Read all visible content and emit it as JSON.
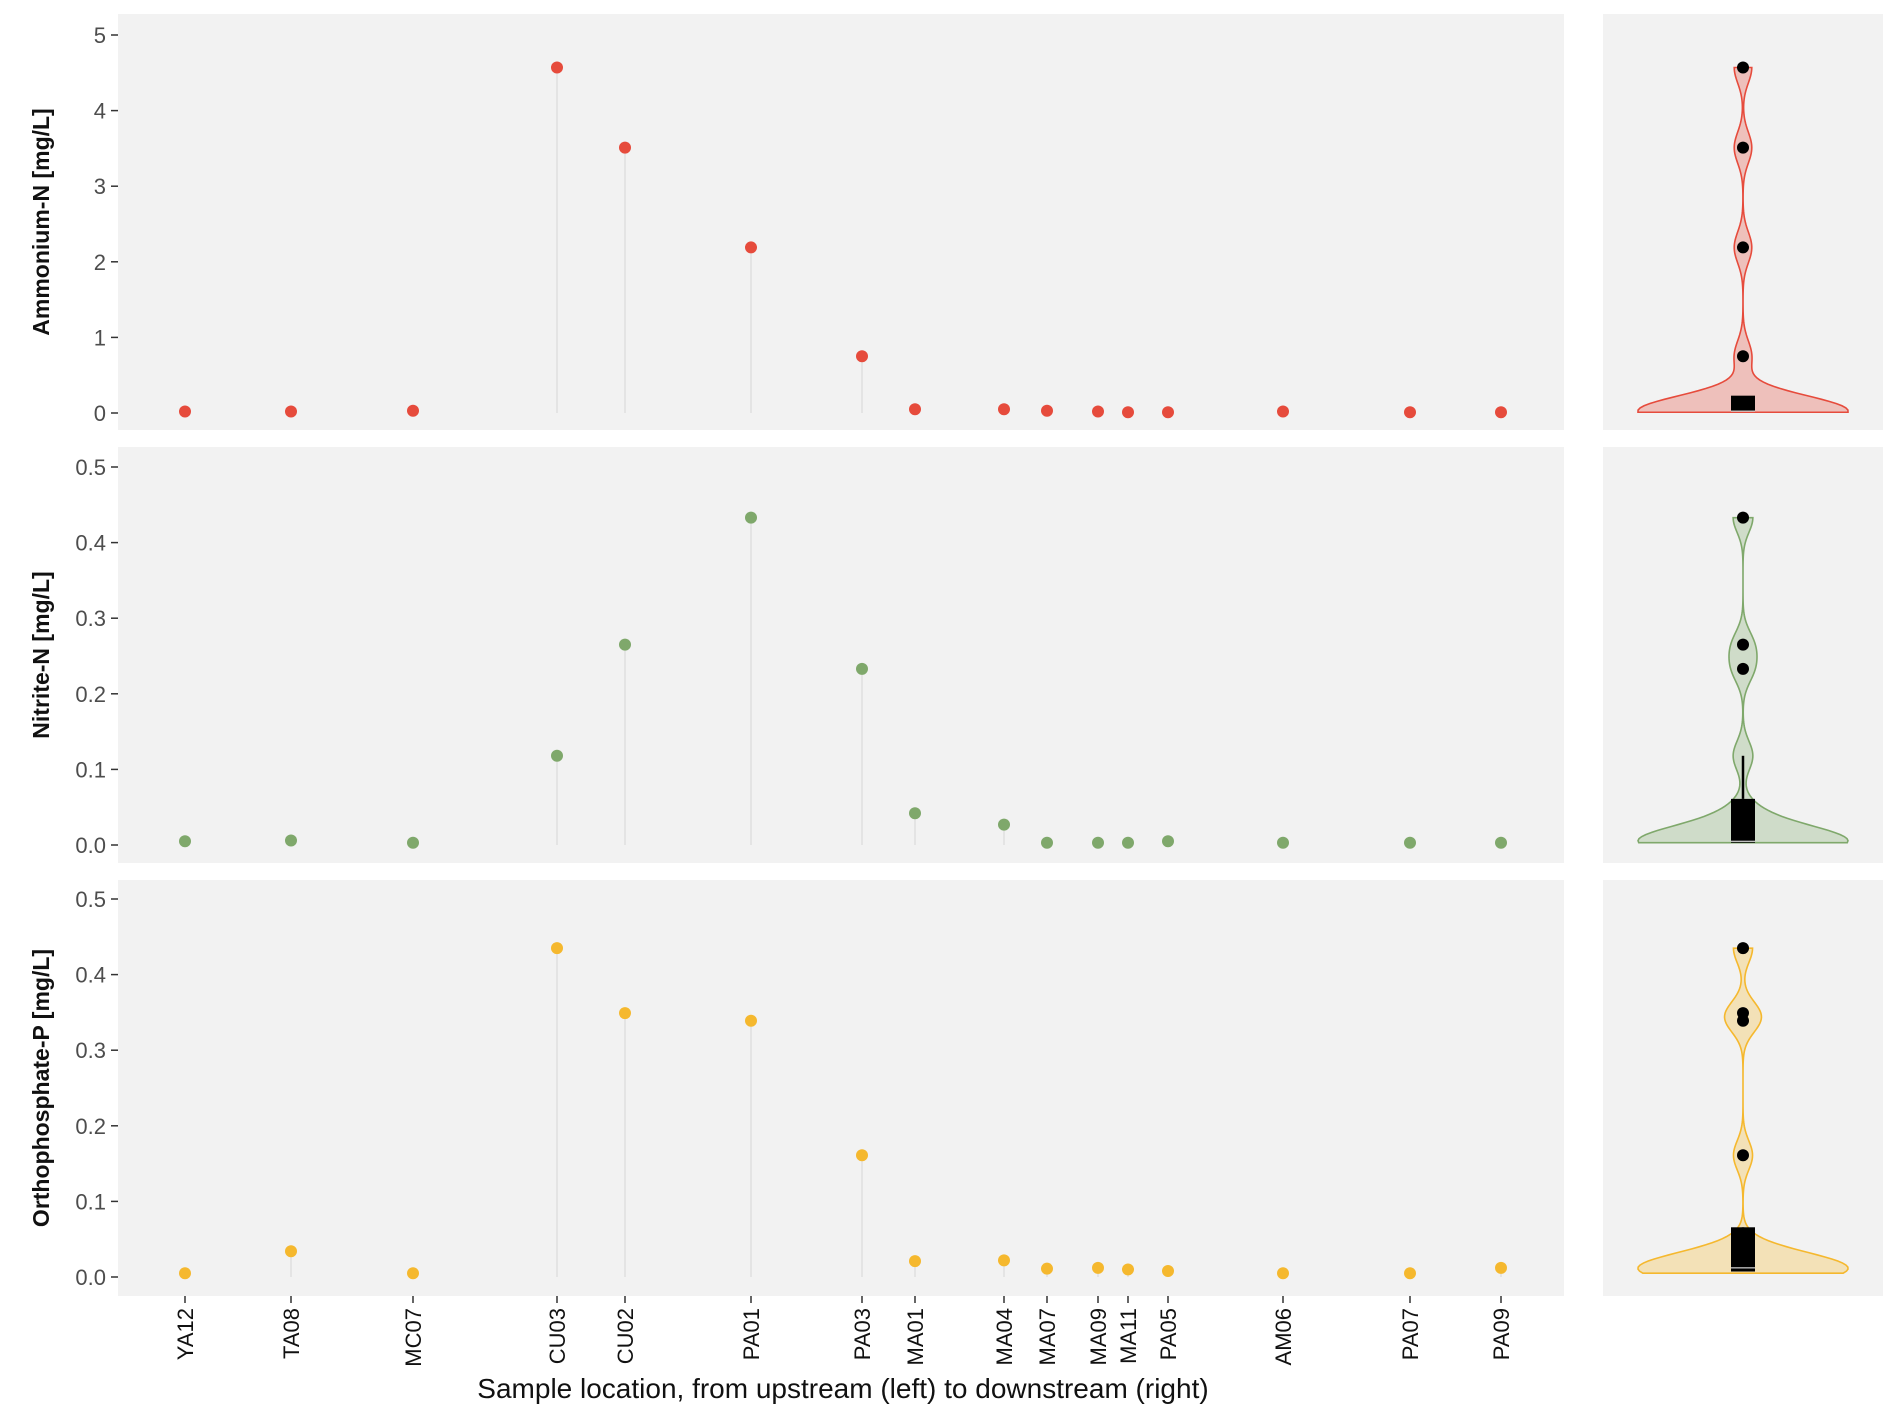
{
  "colors": {
    "panel_bg": "#f2f2f2",
    "ammonium": "#e64b3c",
    "nitrite": "#7fa86b",
    "orthophosphate": "#f5b82e",
    "summary_marks": "#000000"
  },
  "chart_data": {
    "type": "scatter",
    "xlabel": "Sample location, from upstream (left) to downstream (right)",
    "categories": [
      "YA12",
      "TA08",
      "MC07",
      "CU03",
      "CU02",
      "PA01",
      "PA03",
      "MA01",
      "MA04",
      "MA07",
      "MA09",
      "MA11",
      "PA05",
      "AM06",
      "PA07",
      "PA09"
    ],
    "grid": false,
    "facets": [
      {
        "ylabel": "Ammonium-N [mg/L]",
        "ylim": [
          0,
          5
        ],
        "yticks": [
          "0",
          "1",
          "2",
          "3",
          "4",
          "5"
        ],
        "values": [
          0.02,
          0.02,
          0.03,
          4.57,
          3.51,
          2.19,
          0.75,
          0.05,
          0.05,
          0.03,
          0.02,
          0.01,
          0.01,
          0.02,
          0.01,
          0.01
        ],
        "color": "#e64b3c",
        "side_plot": "violin with boxplot"
      },
      {
        "ylabel": "Nitrite-N [mg/L]",
        "ylim": [
          0,
          0.5
        ],
        "yticks": [
          "0.0",
          "0.1",
          "0.2",
          "0.3",
          "0.4",
          "0.5"
        ],
        "values": [
          0.005,
          0.006,
          0.003,
          0.118,
          0.265,
          0.433,
          0.233,
          0.042,
          0.027,
          0.003,
          0.003,
          0.003,
          0.005,
          0.003,
          0.003,
          0.003
        ],
        "color": "#7fa86b",
        "side_plot": "violin with boxplot"
      },
      {
        "ylabel": "Orthophosphate-P [mg/L]",
        "ylim": [
          0,
          0.5
        ],
        "yticks": [
          "0.0",
          "0.1",
          "0.2",
          "0.3",
          "0.4",
          "0.5"
        ],
        "values": [
          0.005,
          0.034,
          0.005,
          0.435,
          0.349,
          0.339,
          0.161,
          0.021,
          0.022,
          0.011,
          0.012,
          0.01,
          0.008,
          0.005,
          0.005,
          0.012
        ],
        "color": "#f5b82e",
        "side_plot": "violin with boxplot"
      }
    ]
  }
}
